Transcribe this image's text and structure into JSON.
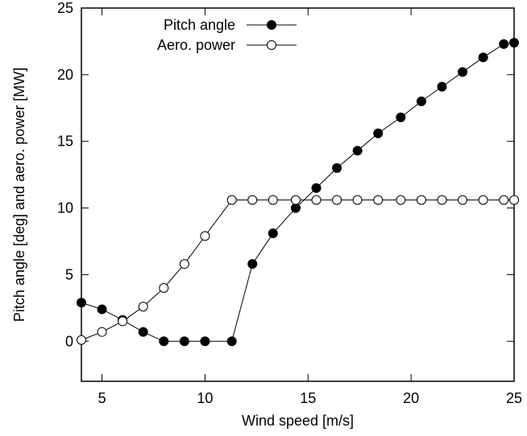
{
  "chart_data": {
    "type": "line",
    "xlabel": "Wind speed [m/s]",
    "ylabel": "Pitch angle [deg] and aero. power [MW]",
    "xlim": [
      4,
      25
    ],
    "ylim": [
      -3,
      25
    ],
    "xticks": [
      5,
      10,
      15,
      20,
      25
    ],
    "yticks": [
      0,
      5,
      10,
      15,
      20,
      25
    ],
    "grid": false,
    "legend_position": "top-left",
    "series": [
      {
        "name": "Pitch angle",
        "marker": "filled-circle",
        "x": [
          4,
          5,
          6,
          7,
          8,
          9,
          10,
          11.3,
          12.3,
          13.3,
          14.4,
          15.4,
          16.4,
          17.4,
          18.4,
          19.5,
          20.5,
          21.5,
          22.5,
          23.5,
          24.5,
          25
        ],
        "y": [
          2.9,
          2.4,
          1.6,
          0.7,
          0,
          0,
          0,
          0,
          5.8,
          8.1,
          10.0,
          11.5,
          13.0,
          14.3,
          15.6,
          16.8,
          18.0,
          19.1,
          20.2,
          21.3,
          22.3,
          22.4
        ]
      },
      {
        "name": "Aero. power",
        "marker": "open-circle",
        "x": [
          4,
          5,
          6,
          7,
          8,
          9,
          10,
          11.3,
          12.3,
          13.3,
          14.4,
          15.4,
          16.4,
          17.4,
          18.4,
          19.5,
          20.5,
          21.5,
          22.5,
          23.5,
          24.5,
          25
        ],
        "y": [
          0.1,
          0.7,
          1.5,
          2.6,
          4.0,
          5.8,
          7.9,
          10.6,
          10.6,
          10.6,
          10.6,
          10.6,
          10.6,
          10.6,
          10.6,
          10.6,
          10.6,
          10.6,
          10.6,
          10.6,
          10.6,
          10.6
        ]
      }
    ]
  }
}
